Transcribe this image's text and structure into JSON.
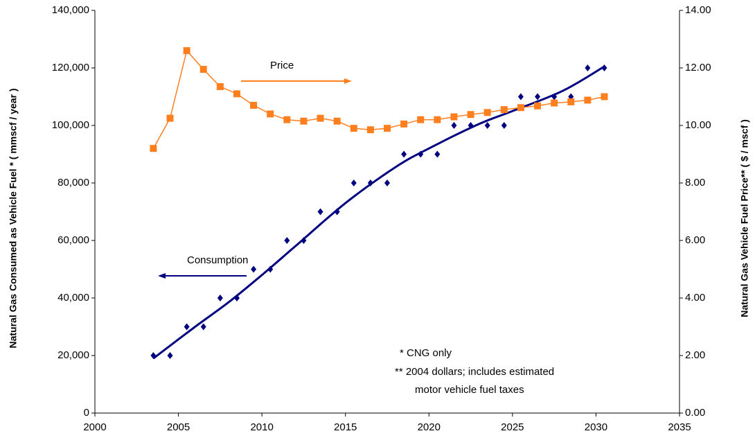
{
  "chart_data": {
    "type": "line",
    "y_axis_label": "Natural Gas Consumed as Vehicle Fuel *  ( mmscf / year )",
    "y2_axis_label": "Natural Gas Vehicle Fuel Price**  ( $ / mscf )",
    "annotations": [
      "Price",
      "Consumption",
      "* CNG only",
      "** 2004 dollars; includes estimated",
      "motor vehicle fuel taxes"
    ],
    "x": [
      2003.5,
      2004.5,
      2005.5,
      2006.5,
      2007.5,
      2008.5,
      2009.5,
      2010.5,
      2011.5,
      2012.5,
      2013.5,
      2014.5,
      2015.5,
      2016.5,
      2017.5,
      2018.5,
      2019.5,
      2020.5,
      2021.5,
      2022.5,
      2023.5,
      2024.5,
      2025.5,
      2026.5,
      2027.5,
      2028.5,
      2029.5,
      2030.5
    ],
    "series": [
      {
        "name": "Consumption",
        "color": "#000080",
        "marker": "diamond",
        "values": [
          20000,
          20000,
          30000,
          30000,
          40000,
          40000,
          50000,
          50000,
          60000,
          60000,
          70000,
          70000,
          80000,
          80000,
          80000,
          90000,
          90000,
          90000,
          100000,
          100000,
          100000,
          100000,
          110000,
          110000,
          110000,
          110000,
          120000,
          120000
        ]
      },
      {
        "name": "Price",
        "color": "#ff7f1f",
        "marker": "square",
        "axis": "y2",
        "values": [
          9.2,
          10.25,
          12.6,
          11.95,
          11.35,
          11.1,
          10.7,
          10.4,
          10.2,
          10.15,
          10.25,
          10.15,
          9.9,
          9.85,
          9.9,
          10.05,
          10.2,
          10.2,
          10.3,
          10.38,
          10.45,
          10.55,
          10.62,
          10.68,
          10.78,
          10.82,
          10.88,
          11.0
        ]
      }
    ],
    "trendline": {
      "color": "#000080",
      "x": [
        2003.5,
        2006,
        2008,
        2010,
        2012,
        2015,
        2018,
        2020,
        2023,
        2025,
        2028,
        2030.5
      ],
      "values": [
        19000,
        30000,
        38500,
        48000,
        58000,
        73000,
        85500,
        92000,
        100500,
        105000,
        112000,
        120500
      ]
    },
    "xlim": [
      2000,
      2035
    ],
    "xticks": [
      2000,
      2005,
      2010,
      2015,
      2020,
      2025,
      2030,
      2035
    ],
    "ylim": [
      0,
      140000
    ],
    "yticks": [
      0,
      {
        "value": 20000,
        "label": "20,000"
      },
      {
        "value": 40000,
        "label": "40,000"
      },
      {
        "value": 60000,
        "label": "60,000"
      },
      {
        "value": 80000,
        "label": "80,000"
      },
      {
        "value": 100000,
        "label": "100,000"
      },
      {
        "value": 120000,
        "label": "120,000"
      },
      {
        "value": 140000,
        "label": "140,000"
      }
    ],
    "y2lim": [
      0,
      14
    ],
    "y2ticks": [
      {
        "value": 0,
        "label": "0.00"
      },
      {
        "value": 2,
        "label": "2.00"
      },
      {
        "value": 4,
        "label": "4.00"
      },
      {
        "value": 6,
        "label": "6.00"
      },
      {
        "value": 8,
        "label": "8.00"
      },
      {
        "value": 10,
        "label": "10.00"
      },
      {
        "value": 12,
        "label": "12.00"
      },
      {
        "value": 14,
        "label": "14.00"
      }
    ],
    "grid": false
  }
}
